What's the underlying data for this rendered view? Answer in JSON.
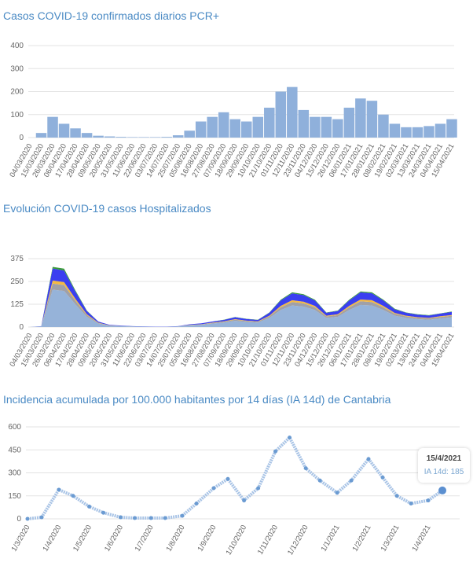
{
  "chart_data": [
    {
      "type": "bar",
      "title": "Casos COVID-19 confirmados diarios PCR+",
      "xlabel": "",
      "ylabel": "",
      "ylim": [
        0,
        400
      ],
      "yticks": [
        0,
        100,
        200,
        300,
        400
      ],
      "grid": true,
      "color": "#8fb0db",
      "categories": [
        "04/03/2020",
        "15/03/2020",
        "26/03/2020",
        "06/04/2020",
        "17/04/2020",
        "28/04/2020",
        "09/05/2020",
        "20/05/2020",
        "31/05/2020",
        "11/06/2020",
        "22/06/2020",
        "03/07/2020",
        "14/07/2020",
        "25/07/2020",
        "05/08/2020",
        "16/08/2020",
        "27/08/2020",
        "07/09/2020",
        "18/09/2020",
        "29/09/2020",
        "10/10/2020",
        "21/10/2020",
        "01/11/2020",
        "12/11/2020",
        "23/11/2020",
        "04/12/2020",
        "15/12/2020",
        "26/12/2020",
        "06/01/2021",
        "17/01/2021",
        "28/01/2021",
        "08/02/2021",
        "19/02/2021",
        "02/03/2021",
        "13/03/2021",
        "24/03/2021",
        "04/04/2021",
        "15/04/2021"
      ],
      "values": [
        0,
        20,
        90,
        60,
        40,
        20,
        8,
        5,
        3,
        2,
        2,
        2,
        3,
        10,
        30,
        70,
        90,
        110,
        80,
        70,
        90,
        130,
        200,
        220,
        120,
        90,
        90,
        80,
        130,
        170,
        160,
        100,
        60,
        45,
        45,
        50,
        60,
        80
      ]
    },
    {
      "type": "area",
      "stacked": true,
      "title": "Evolución COVID-19 casos  Hospitalizados",
      "xlabel": "",
      "ylabel": "",
      "ylim": [
        0,
        500
      ],
      "yticks": [
        0,
        125,
        250,
        375
      ],
      "grid": true,
      "categories": [
        "04/03/2020",
        "15/03/2020",
        "26/03/2020",
        "06/04/2020",
        "17/04/2020",
        "28/04/2020",
        "09/05/2020",
        "20/05/2020",
        "31/05/2020",
        "11/06/2020",
        "22/06/2020",
        "03/07/2020",
        "14/07/2020",
        "25/07/2020",
        "05/08/2020",
        "16/08/2020",
        "27/08/2020",
        "07/09/2020",
        "18/09/2020",
        "29/09/2020",
        "10/10/2020",
        "21/10/2020",
        "01/11/2020",
        "12/11/2020",
        "23/11/2020",
        "04/12/2020",
        "15/12/2020",
        "26/12/2020",
        "06/01/2021",
        "17/01/2021",
        "28/01/2021",
        "08/02/2021",
        "19/02/2021",
        "02/03/2021",
        "13/03/2021",
        "24/03/2021",
        "04/04/2021",
        "15/04/2021"
      ],
      "series": [
        {
          "color": "#96b3d9",
          "values": [
            0,
            3,
            205,
            198,
            124,
            56,
            19,
            7,
            5,
            3,
            2,
            1,
            1,
            3,
            9,
            12,
            19,
            25,
            34,
            28,
            25,
            50,
            93,
            118,
            112,
            93,
            50,
            56,
            93,
            121,
            118,
            93,
            62,
            50,
            43,
            40,
            47,
            53
          ]
        },
        {
          "color": "#a0a0a8",
          "values": [
            0,
            1,
            33,
            32,
            20,
            9,
            3,
            1,
            1,
            1,
            0,
            0,
            0,
            1,
            2,
            2,
            3,
            4,
            6,
            5,
            4,
            8,
            15,
            19,
            18,
            15,
            8,
            9,
            15,
            20,
            19,
            15,
            10,
            8,
            7,
            7,
            8,
            9
          ]
        },
        {
          "color": "#f4b942",
          "values": [
            0,
            0,
            17,
            16,
            10,
            5,
            2,
            1,
            0,
            0,
            0,
            0,
            0,
            0,
            1,
            1,
            2,
            2,
            3,
            2,
            2,
            4,
            8,
            10,
            9,
            8,
            4,
            5,
            8,
            10,
            10,
            8,
            5,
            4,
            4,
            3,
            4,
            4
          ]
        },
        {
          "color": "#3a3ff0",
          "values": [
            0,
            1,
            66,
            64,
            40,
            18,
            6,
            3,
            2,
            1,
            1,
            1,
            1,
            1,
            3,
            5,
            6,
            8,
            11,
            9,
            8,
            16,
            30,
            38,
            36,
            30,
            16,
            18,
            30,
            39,
            38,
            30,
            20,
            16,
            14,
            13,
            15,
            17
          ]
        },
        {
          "color": "#3a9a3a",
          "values": [
            0,
            0,
            9,
            10,
            6,
            2,
            0,
            0,
            0,
            0,
            0,
            0,
            0,
            0,
            0,
            0,
            0,
            1,
            1,
            1,
            1,
            2,
            4,
            5,
            5,
            4,
            2,
            2,
            4,
            5,
            5,
            4,
            3,
            2,
            2,
            2,
            1,
            2
          ]
        }
      ]
    },
    {
      "type": "line",
      "title": "Incidencia acumulada por 100.000 habitantes por 14 días (IA 14d) de Cantabria",
      "xlabel": "",
      "ylabel": "",
      "ylim": [
        0,
        600
      ],
      "yticks": [
        0,
        150,
        300,
        450,
        600
      ],
      "grid": true,
      "color": "#6b9bd2",
      "xticks": [
        "1/3/2020",
        "1/4/2020",
        "1/5/2020",
        "1/6/2020",
        "1/7/2020",
        "1/8/2020",
        "1/9/2020",
        "1/10/2020",
        "1/11/2020",
        "1/12/2020",
        "1/1/2021",
        "1/2/2021",
        "1/3/2021",
        "1/4/2021"
      ],
      "x": [
        "1/3/2020",
        "15/3/2020",
        "1/4/2020",
        "15/4/2020",
        "1/5/2020",
        "15/5/2020",
        "1/6/2020",
        "15/6/2020",
        "1/7/2020",
        "15/7/2020",
        "1/8/2020",
        "15/8/2020",
        "1/9/2020",
        "15/9/2020",
        "1/10/2020",
        "15/10/2020",
        "1/11/2020",
        "15/11/2020",
        "1/12/2020",
        "15/12/2020",
        "1/1/2021",
        "15/1/2021",
        "1/2/2021",
        "15/2/2021",
        "1/3/2021",
        "15/3/2021",
        "1/4/2021",
        "15/4/2021"
      ],
      "y": [
        0,
        10,
        190,
        150,
        80,
        40,
        10,
        5,
        5,
        5,
        20,
        100,
        200,
        260,
        120,
        200,
        440,
        530,
        330,
        250,
        170,
        250,
        390,
        270,
        150,
        100,
        120,
        185
      ],
      "tooltip": {
        "date": "15/4/2021",
        "label": "IA 14d: 185"
      }
    }
  ]
}
